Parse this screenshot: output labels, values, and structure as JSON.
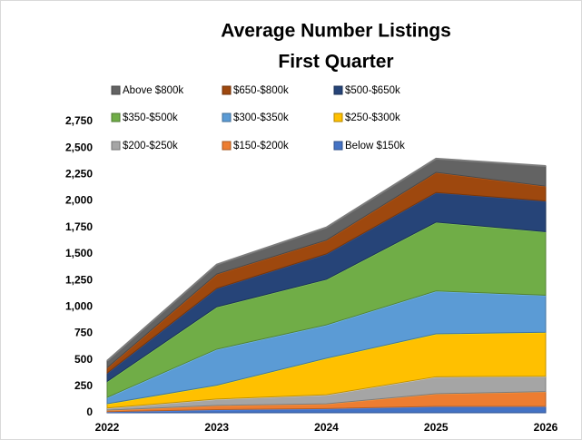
{
  "chart_data": {
    "type": "stacked_area",
    "title": "Average Number Listings",
    "subtitle": "First Quarter",
    "x": [
      2022,
      2023,
      2024,
      2025,
      2026
    ],
    "xlim": [
      2022,
      2026
    ],
    "xticks": [
      2022,
      2023,
      2024,
      2025,
      2026
    ],
    "ylim": [
      0,
      2750
    ],
    "yticks": [
      0,
      250,
      500,
      750,
      {
        "value": 1000,
        "label": "1,000"
      },
      {
        "value": 1250,
        "label": "1,250"
      },
      {
        "value": 1500,
        "label": "1,500"
      },
      {
        "value": 1750,
        "label": "1,750"
      },
      {
        "value": 2000,
        "label": "2,000"
      },
      {
        "value": 2250,
        "label": "2,250"
      },
      {
        "value": 2500,
        "label": "2,500"
      },
      {
        "value": 2750,
        "label": "2,750"
      }
    ],
    "grid": false,
    "legend": "top",
    "series": [
      {
        "name": "Below $150k",
        "color": "#4472c4",
        "values": [
          10,
          30,
          40,
          60,
          60
        ]
      },
      {
        "name": "$150-$200k",
        "color": "#ed7d31",
        "values": [
          15,
          40,
          45,
          120,
          140
        ]
      },
      {
        "name": "$200-$250k",
        "color": "#a5a5a5",
        "values": [
          20,
          60,
          85,
          160,
          145
        ]
      },
      {
        "name": "$250-$300k",
        "color": "#ffc000",
        "values": [
          40,
          130,
          345,
          405,
          415
        ]
      },
      {
        "name": "$300-$350k",
        "color": "#5b9bd5",
        "values": [
          60,
          340,
          315,
          405,
          350
        ]
      },
      {
        "name": "$350-$500k",
        "color": "#70ad47",
        "values": [
          150,
          400,
          430,
          650,
          600
        ]
      },
      {
        "name": "$500-$650k",
        "color": "#264478",
        "values": [
          80,
          175,
          240,
          280,
          290
        ]
      },
      {
        "name": "$650-$800k",
        "color": "#9e480e",
        "values": [
          50,
          135,
          130,
          190,
          140
        ]
      },
      {
        "name": "Above $800k",
        "color": "#636363",
        "values": [
          65,
          90,
          120,
          130,
          190
        ]
      }
    ]
  }
}
